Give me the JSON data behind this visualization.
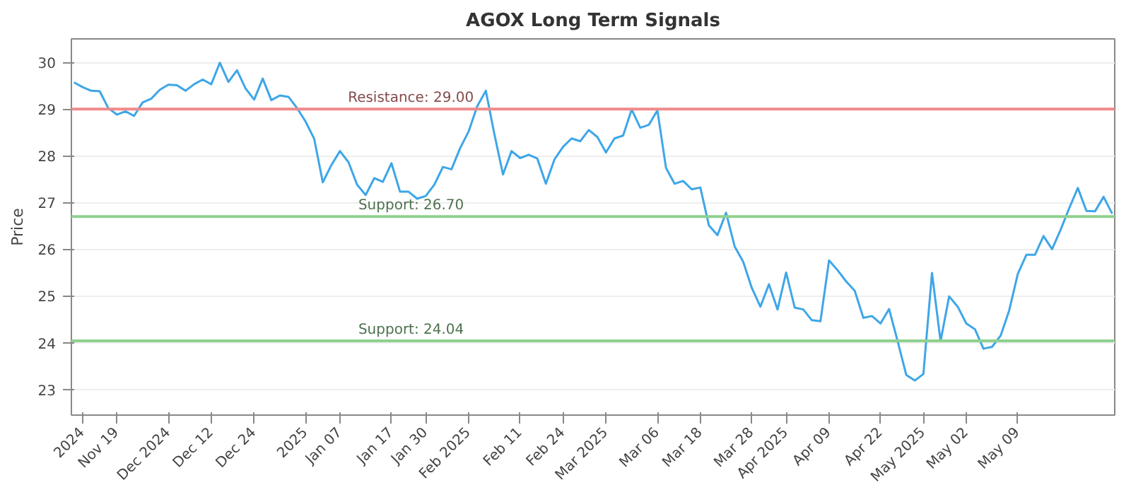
{
  "chart_data": {
    "type": "line",
    "title": "AGOX Long Term Signals",
    "ylabel": "Price",
    "categories": [
      null,
      "2024",
      null,
      null,
      null,
      "Nov 19",
      null,
      null,
      null,
      null,
      null,
      "Dec 2024",
      null,
      null,
      null,
      null,
      "Dec 12",
      null,
      null,
      null,
      null,
      "Dec 24",
      null,
      null,
      null,
      null,
      null,
      "2025",
      null,
      null,
      null,
      "Jan 07",
      null,
      null,
      null,
      null,
      null,
      "Jan 17",
      null,
      null,
      null,
      "Jan 30",
      null,
      null,
      null,
      null,
      "Feb 2025",
      null,
      null,
      null,
      null,
      null,
      "Feb 11",
      null,
      null,
      null,
      null,
      "Feb 24",
      null,
      null,
      null,
      null,
      "Mar 2025",
      null,
      null,
      null,
      null,
      null,
      "Mar 06",
      null,
      null,
      null,
      null,
      "Mar 18",
      null,
      null,
      null,
      null,
      null,
      "Mar 28",
      null,
      null,
      null,
      "Apr 2025",
      null,
      null,
      null,
      null,
      "Apr 09",
      null,
      null,
      null,
      null,
      null,
      "Apr 22",
      null,
      null,
      null,
      null,
      "May 2025",
      null,
      null,
      null,
      null,
      "May 02",
      null,
      null,
      null,
      null,
      null,
      "May 09",
      null,
      null,
      null,
      null,
      null,
      null,
      null,
      null,
      null,
      null,
      null
    ],
    "series": [
      {
        "color": "#3ea6e8",
        "values": [
          29.57,
          29.47,
          29.39,
          29.38,
          29.02,
          28.88,
          28.95,
          28.85,
          29.14,
          29.22,
          29.41,
          29.52,
          29.51,
          29.39,
          29.53,
          29.63,
          29.53,
          29.99,
          29.58,
          29.83,
          29.44,
          29.2,
          29.65,
          29.19,
          29.29,
          29.26,
          29.02,
          28.73,
          28.36,
          27.43,
          27.8,
          28.1,
          27.86,
          27.38,
          27.16,
          27.52,
          27.44,
          27.84,
          27.23,
          27.23,
          27.08,
          27.14,
          27.38,
          27.76,
          27.71,
          28.16,
          28.52,
          29.06,
          29.39,
          28.46,
          27.6,
          28.1,
          27.95,
          28.02,
          27.94,
          27.4,
          27.92,
          28.19,
          28.37,
          28.31,
          28.55,
          28.4,
          28.07,
          28.37,
          28.43,
          28.99,
          28.6,
          28.66,
          28.97,
          27.74,
          27.4,
          27.46,
          27.28,
          27.32,
          26.51,
          26.3,
          26.78,
          26.06,
          25.73,
          25.17,
          24.77,
          25.25,
          24.71,
          25.5,
          24.75,
          24.71,
          24.48,
          24.46,
          25.76,
          25.55,
          25.31,
          25.11,
          24.53,
          24.57,
          24.41,
          24.72,
          24.03,
          23.31,
          23.19,
          23.33,
          25.49,
          24.03,
          24.99,
          24.77,
          24.41,
          24.29,
          23.87,
          23.91,
          24.15,
          24.69,
          25.47,
          25.88,
          25.88,
          26.28,
          26.0,
          26.42,
          26.88,
          27.31,
          26.82,
          26.81,
          27.12,
          26.76
        ]
      }
    ],
    "ylim": [
      22.45,
      30.5
    ],
    "yticks": [
      23,
      24,
      25,
      26,
      27,
      28,
      29,
      30
    ],
    "ref_lines": [
      {
        "axis": "y",
        "value": 29.0,
        "label": "Resistance: 29.00",
        "color": "#f08a8a"
      },
      {
        "axis": "y",
        "value": 26.7,
        "label": "Support: 26.70",
        "color": "#8fd18f"
      },
      {
        "axis": "y",
        "value": 24.04,
        "label": "Support: 24.04",
        "color": "#8fd18f"
      }
    ],
    "grid": "y",
    "marker": "none",
    "line_style": "solid"
  }
}
